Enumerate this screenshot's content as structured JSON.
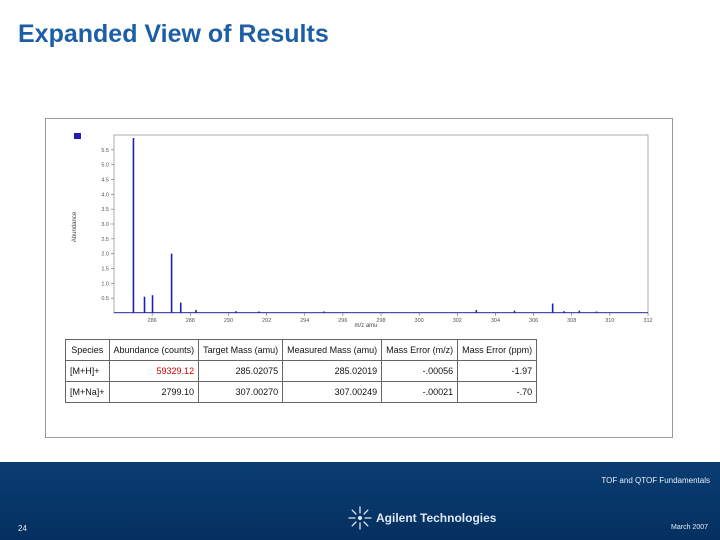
{
  "slide": {
    "title": "Expanded View of Results",
    "page_number": "24",
    "footer_course": "TOF and QTOF Fundamentals",
    "footer_date": "March 2007",
    "logo_text": "Agilent Technologies"
  },
  "colors": {
    "title": "#1c5fa6",
    "footer_band": "#0a3d73",
    "trace": "#1f1fb8",
    "flag_red": "#d10000"
  },
  "icons": {
    "logo": "agilent-spark-icon"
  },
  "table": {
    "headers": [
      "Species",
      "Abundance (counts)",
      "Target Mass (amu)",
      "Measured Mass (amu)",
      "Mass Error (m/z)",
      "Mass Error (ppm)"
    ],
    "rows": [
      {
        "species": "[M+H]+",
        "abundance": "59329.12",
        "target": "285.02075",
        "measured": "285.02019",
        "error_mz": "-.00056",
        "error_ppm": "-1.97",
        "abundance_flag": true
      },
      {
        "species": "[M+Na]+",
        "abundance": "2799.10",
        "target": "307.00270",
        "measured": "307.00249",
        "error_mz": "-.00021",
        "error_ppm": "-.70",
        "abundance_flag": false
      }
    ]
  },
  "chart_data": {
    "type": "line",
    "xlabel": "m/z amu",
    "ylabel": "Abundance",
    "xlim": [
      284,
      312
    ],
    "ylim": [
      0,
      6.0
    ],
    "x_ticks": [
      286,
      288,
      290,
      292,
      294,
      296,
      298,
      300,
      302,
      304,
      306,
      308,
      310,
      312
    ],
    "y_ticks": [
      0.5,
      1.0,
      1.5,
      2.0,
      2.5,
      3.0,
      3.5,
      4.0,
      4.5,
      5.0,
      5.5
    ],
    "peaks": [
      {
        "x": 285.02,
        "y": 5.9
      },
      {
        "x": 285.6,
        "y": 0.55
      },
      {
        "x": 286.02,
        "y": 0.6
      },
      {
        "x": 287.02,
        "y": 2.0
      },
      {
        "x": 287.5,
        "y": 0.35
      },
      {
        "x": 288.3,
        "y": 0.1
      },
      {
        "x": 290.4,
        "y": 0.06
      },
      {
        "x": 291.6,
        "y": 0.05
      },
      {
        "x": 295.0,
        "y": 0.05
      },
      {
        "x": 303.0,
        "y": 0.1
      },
      {
        "x": 305.0,
        "y": 0.08
      },
      {
        "x": 307.0,
        "y": 0.32
      },
      {
        "x": 307.6,
        "y": 0.06
      },
      {
        "x": 308.4,
        "y": 0.08
      },
      {
        "x": 309.3,
        "y": 0.05
      }
    ]
  }
}
